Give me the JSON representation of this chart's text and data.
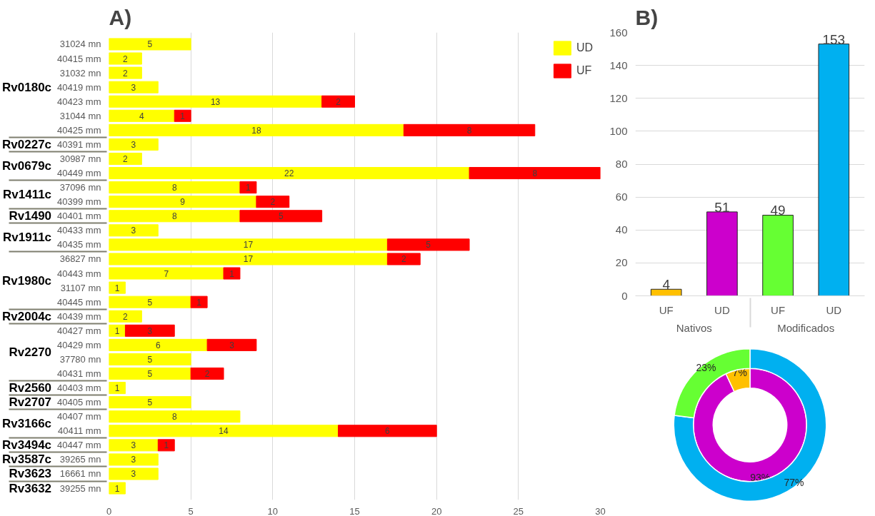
{
  "chart_data": [
    {
      "type": "bar",
      "orientation": "horizontal",
      "stacked": true,
      "title": "A)",
      "categories": [
        "31024 mn",
        "40415 mm",
        "31032 mn",
        "40419 mm",
        "40423 mm",
        "31044 mn",
        "40425 mm",
        "40391 mm",
        "30987 mn",
        "40449 mm",
        "37096 mn",
        "40399 mm",
        "40401 mm",
        "40433 mm",
        "40435 mm",
        "36827 mn",
        "40443 mm",
        "31107 mn",
        "40445 mm",
        "40439 mm",
        "40427 mm",
        "40429 mm",
        "37780 mn",
        "40431 mm",
        "40403 mm",
        "40405 mm",
        "40407 mm",
        "40411 mm",
        "40447 mm",
        "39265 mn",
        "16661 mn",
        "39255 mn"
      ],
      "series": [
        {
          "name": "UD",
          "color": "#ffff00",
          "values": [
            5,
            2,
            2,
            3,
            13,
            4,
            18,
            3,
            2,
            22,
            8,
            9,
            8,
            3,
            17,
            17,
            7,
            1,
            5,
            2,
            1,
            6,
            5,
            5,
            1,
            5,
            8,
            14,
            3,
            3,
            3,
            1
          ]
        },
        {
          "name": "UF",
          "color": "#ff0000",
          "values": [
            null,
            null,
            null,
            null,
            2,
            1,
            8,
            null,
            null,
            8,
            1,
            2,
            5,
            null,
            5,
            2,
            1,
            null,
            1,
            null,
            3,
            3,
            null,
            2,
            null,
            null,
            null,
            6,
            1,
            null,
            null,
            null
          ]
        }
      ],
      "xlim": [
        0,
        30
      ],
      "xticks": [
        0,
        5,
        10,
        15,
        20,
        25,
        30
      ],
      "grid": "x",
      "legend": "top right",
      "data_labels": true,
      "annotations": [
        "Rv0180c",
        "Rv0227c",
        "Rv0679c",
        "Rv1411c",
        "Rv1490",
        "Rv1911c",
        "Rv1980c",
        "Rv2004c",
        "Rv2270",
        "Rv2560",
        "Rv2707",
        "Rv3166c",
        "Rv3494c",
        "Rv3587c",
        "Rv3623",
        "Rv3632"
      ]
    },
    {
      "type": "bar",
      "title": "B)",
      "categories": [
        "UF",
        "UD",
        "UF",
        "UD"
      ],
      "values": [
        4,
        51,
        49,
        153
      ],
      "colors": [
        "#ffc000",
        "#cc00cc",
        "#66ff33",
        "#00b0f0"
      ],
      "ylim": [
        0,
        160
      ],
      "yticks": [
        0,
        20,
        40,
        60,
        80,
        100,
        120,
        140,
        160
      ],
      "grid": "y",
      "data_labels": true,
      "annotations": [
        "Nativos",
        "Modificados"
      ]
    },
    {
      "type": "donut",
      "categories": [
        null,
        null
      ],
      "series": [
        {
          "values": [
            93,
            7
          ],
          "value_labels": [
            "93%",
            "7%"
          ],
          "colors": [
            "#cc00cc",
            "#ffc000"
          ]
        },
        {
          "values": [
            77,
            23
          ],
          "value_labels": [
            "77%",
            "23%"
          ],
          "colors": [
            "#00b0f0",
            "#66ff33"
          ]
        }
      ]
    }
  ]
}
